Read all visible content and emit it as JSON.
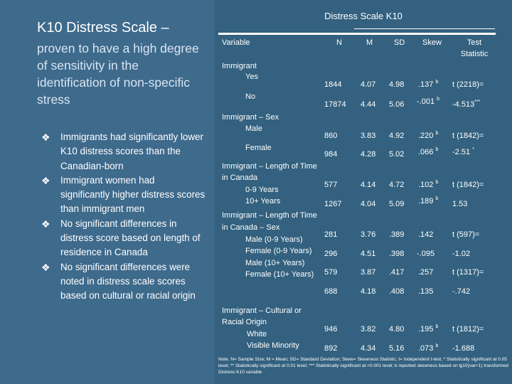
{
  "slide": {
    "title_main": "K10 Distress Scale",
    "title_dash": "–",
    "subtitle": "proven to have a high degree of sensitivity in the identification of non-specific stress",
    "bullets": [
      "Immigrants had significantly lower K10 distress scores than the Canadian-born",
      "Immigrant women had significantly higher distress scores than immigrant men",
      "No significant differences in distress score based on length of residence in Canada",
      "No significant differences were noted in distress scale scores based on cultural or racial origin"
    ],
    "bullet_icon": "diamond-bullet-icon"
  },
  "table": {
    "title": "Distress Scale K10",
    "headers": {
      "variable": "Variable",
      "n": "N",
      "m": "M",
      "sd": "SD",
      "skew": "Skew",
      "test": "Test",
      "test2": "Statistic"
    },
    "labels": {
      "immigrant": "Immigrant",
      "yes": "Yes",
      "no": "No",
      "immigrant_sex": "Immigrant – Sex",
      "male": "Male",
      "female": "Female",
      "length1": "Immigrant – Length of Time",
      "length2": "in Canada",
      "y0_9": "0-9 Years",
      "y10": "10+ Years",
      "ls1": "Immigrant – Length of Time",
      "ls2": "in Canada – Sex",
      "m09": "Male (0-9 Years)",
      "f09": "Female (0-9 Years)",
      "m10": "Male (10+ Years)",
      "f10": "Female (10+ Years)",
      "co1": "Immigrant – Cultural or",
      "co2": "Racial Origin",
      "white": "White",
      "vismin": "Visible Minority"
    },
    "rows": {
      "yes": {
        "n": "1844",
        "m": "4.07",
        "sd": "4.98",
        "skew": ".137",
        "skew_sup": "b",
        "test": "t (2218)=",
        "test_sup": ""
      },
      "no": {
        "n": "17874",
        "m": "4.44",
        "sd": "5.06",
        "skew": "-.001",
        "skew_sup": "b",
        "test": "-4.513",
        "test_sup": "***"
      },
      "male": {
        "n": "860",
        "m": "3.83",
        "sd": "4.92",
        "skew": ".220",
        "skew_sup": "b",
        "test": "t (1842)=",
        "test_sup": ""
      },
      "female": {
        "n": "984",
        "m": "4.28",
        "sd": "5.02",
        "skew": ".066",
        "skew_sup": "b",
        "test": "-2.51",
        "test_sup": "*"
      },
      "y09": {
        "n": "577",
        "m": "4.14",
        "sd": "4.72",
        "skew": ".102",
        "skew_sup": "b",
        "test": "t (1842)=",
        "test_sup": ""
      },
      "y10": {
        "n": "1267",
        "m": "4.04",
        "sd": "5.09",
        "skew": ".189",
        "skew_sup": "b",
        "test": "1.53",
        "test_sup": ""
      },
      "m09": {
        "n": "281",
        "m": "3.76",
        "sd": ".389",
        "skew": ".142",
        "skew_sup": "",
        "test": "t (597)=",
        "test_sup": ""
      },
      "f09": {
        "n": "296",
        "m": "4.51",
        "sd": ".398",
        "skew": "-.095",
        "skew_sup": "",
        "test": "-1.02",
        "test_sup": ""
      },
      "m10": {
        "n": "579",
        "m": "3.87",
        "sd": ".417",
        "skew": ".257",
        "skew_sup": "",
        "test": "t (1317)=",
        "test_sup": ""
      },
      "f10": {
        "n": "688",
        "m": "4.18",
        "sd": ".408",
        "skew": ".135",
        "skew_sup": "",
        "test": "-.742",
        "test_sup": ""
      },
      "white": {
        "n": "946",
        "m": "3.82",
        "sd": "4.80",
        "skew": ".195",
        "skew_sup": "b",
        "test": "t (1812)=",
        "test_sup": ""
      },
      "vis": {
        "n": "892",
        "m": "4.34",
        "sd": "5.16",
        "skew": ".073",
        "skew_sup": "b",
        "test": "-1.688",
        "test_sup": ""
      }
    },
    "note": "Note. N= Sample Size; M = Mean; SD= Standard Deviation; Skew= Skewness Statistic; t= Independent t-test; * Statistically significant at 0.05 level; ** Statistically significant at 0.01 level; *** Statistically significant at <0.001 level; b reported skewness based on lg10(var+1) transformed Distress K10 variable"
  }
}
